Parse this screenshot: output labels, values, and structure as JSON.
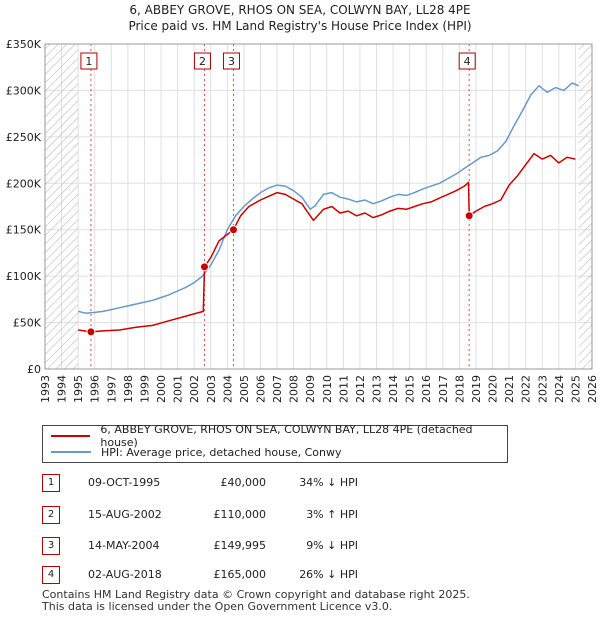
{
  "title_line1": "6, ABBEY GROVE, RHOS ON SEA, COLWYN BAY, LL28 4PE",
  "title_line2": "Price paid vs. HM Land Registry's House Price Index (HPI)",
  "colors": {
    "property": "#cc0000",
    "hpi": "#6699cc",
    "marker_border": "#b00000",
    "future_hatch": "#cccccc"
  },
  "legend": {
    "property": "6, ABBEY GROVE, RHOS ON SEA, COLWYN BAY, LL28 4PE (detached house)",
    "hpi": "HPI: Average price, detached house, Conwy"
  },
  "chart_data": {
    "type": "line",
    "title": "Price paid vs. HM Land Registry's House Price Index (HPI)",
    "xlim": [
      1993,
      2026
    ],
    "ylim": [
      0,
      350000
    ],
    "y_ticks": [
      {
        "value": 0,
        "label": "£0"
      },
      {
        "value": 50000,
        "label": "£50K"
      },
      {
        "value": 100000,
        "label": "£100K"
      },
      {
        "value": 150000,
        "label": "£150K"
      },
      {
        "value": 200000,
        "label": "£200K"
      },
      {
        "value": 250000,
        "label": "£250K"
      },
      {
        "value": 300000,
        "label": "£300K"
      },
      {
        "value": 350000,
        "label": "£350K"
      }
    ],
    "x_ticks": [
      1993,
      1994,
      1995,
      1996,
      1997,
      1998,
      1999,
      2000,
      2001,
      2002,
      2003,
      2004,
      2005,
      2006,
      2007,
      2008,
      2009,
      2010,
      2011,
      2012,
      2013,
      2014,
      2015,
      2016,
      2017,
      2018,
      2019,
      2020,
      2021,
      2022,
      2023,
      2024,
      2025,
      2026
    ],
    "data_start": 1995.0,
    "data_end": 2025.2,
    "series": [
      {
        "name": "6, ABBEY GROVE, RHOS ON SEA, COLWYN BAY, LL28 4PE (detached house)",
        "color": "#cc0000",
        "x": [
          1995.0,
          1995.77,
          1996.5,
          1997.5,
          1998.5,
          1999.5,
          2000.5,
          2001.5,
          2002.55,
          2002.62,
          2003.0,
          2003.5,
          2004.37,
          2004.8,
          2005.3,
          2006.0,
          2006.5,
          2007.0,
          2007.5,
          2008.0,
          2008.5,
          2008.8,
          2009.2,
          2009.8,
          2010.3,
          2010.8,
          2011.3,
          2011.8,
          2012.3,
          2012.8,
          2013.3,
          2013.8,
          2014.3,
          2014.8,
          2015.3,
          2015.8,
          2016.3,
          2016.8,
          2017.3,
          2017.8,
          2018.3,
          2018.55,
          2018.59,
          2019.0,
          2019.5,
          2020.0,
          2020.5,
          2021.0,
          2021.5,
          2022.0,
          2022.5,
          2023.0,
          2023.5,
          2024.0,
          2024.5,
          2025.0
        ],
        "y": [
          42000,
          40000,
          41000,
          42000,
          45000,
          47000,
          52000,
          57000,
          62000,
          110000,
          120000,
          138000,
          149995,
          165000,
          175000,
          182000,
          186000,
          190000,
          188000,
          183000,
          178000,
          170000,
          160000,
          172000,
          175000,
          168000,
          170000,
          165000,
          168000,
          163000,
          166000,
          170000,
          173000,
          172000,
          175000,
          178000,
          180000,
          184000,
          188000,
          192000,
          197000,
          201000,
          165000,
          170000,
          175000,
          178000,
          182000,
          198000,
          208000,
          220000,
          232000,
          226000,
          230000,
          222000,
          228000,
          226000
        ]
      },
      {
        "name": "HPI: Average price, detached house, Conwy",
        "color": "#6699cc",
        "x": [
          1995.0,
          1995.5,
          1996.0,
          1996.5,
          1997.0,
          1997.5,
          1998.0,
          1998.5,
          1999.0,
          1999.5,
          2000.0,
          2000.5,
          2001.0,
          2001.5,
          2002.0,
          2002.5,
          2003.0,
          2003.5,
          2004.0,
          2004.5,
          2005.0,
          2005.5,
          2006.0,
          2006.5,
          2007.0,
          2007.5,
          2008.0,
          2008.5,
          2009.0,
          2009.3,
          2009.8,
          2010.3,
          2010.8,
          2011.3,
          2011.8,
          2012.3,
          2012.8,
          2013.3,
          2013.8,
          2014.3,
          2014.8,
          2015.3,
          2015.8,
          2016.3,
          2016.8,
          2017.3,
          2017.8,
          2018.3,
          2018.8,
          2019.3,
          2019.8,
          2020.3,
          2020.8,
          2021.3,
          2021.8,
          2022.3,
          2022.8,
          2023.3,
          2023.8,
          2024.3,
          2024.8,
          2025.2
        ],
        "y": [
          62000,
          60000,
          61000,
          62000,
          64000,
          66000,
          68000,
          70000,
          72000,
          74000,
          77000,
          80000,
          84000,
          88000,
          93000,
          100000,
          112000,
          128000,
          150000,
          165000,
          175000,
          183000,
          190000,
          195000,
          198000,
          197000,
          192000,
          185000,
          172000,
          176000,
          188000,
          190000,
          185000,
          183000,
          180000,
          182000,
          178000,
          181000,
          185000,
          188000,
          187000,
          190000,
          194000,
          197000,
          200000,
          205000,
          210000,
          216000,
          222000,
          228000,
          230000,
          235000,
          245000,
          262000,
          278000,
          295000,
          305000,
          298000,
          303000,
          300000,
          308000,
          305000
        ]
      }
    ],
    "sale_markers": [
      {
        "num": "1",
        "x": 1995.77,
        "y": 40000
      },
      {
        "num": "2",
        "x": 2002.62,
        "y": 110000
      },
      {
        "num": "3",
        "x": 2004.37,
        "y": 149995
      },
      {
        "num": "4",
        "x": 2018.59,
        "y": 165000
      }
    ]
  },
  "transactions": [
    {
      "num": "1",
      "date": "09-OCT-1995",
      "price": "£40,000",
      "hpi": "34% ↓ HPI"
    },
    {
      "num": "2",
      "date": "15-AUG-2002",
      "price": "£110,000",
      "hpi": "3% ↑ HPI"
    },
    {
      "num": "3",
      "date": "14-MAY-2004",
      "price": "£149,995",
      "hpi": "9% ↓ HPI"
    },
    {
      "num": "4",
      "date": "02-AUG-2018",
      "price": "£165,000",
      "hpi": "26% ↓ HPI"
    }
  ],
  "footer": {
    "line1": "Contains HM Land Registry data © Crown copyright and database right 2025.",
    "line2": "This data is licensed under the Open Government Licence v3.0."
  }
}
